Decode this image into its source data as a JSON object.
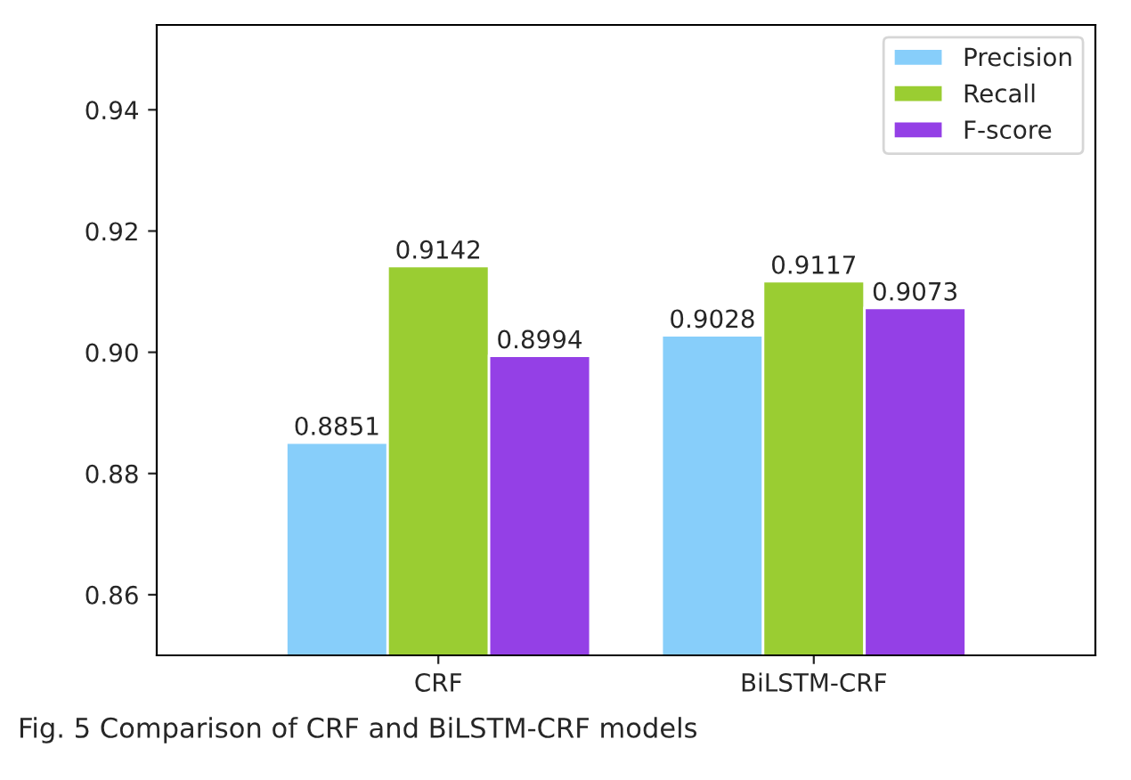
{
  "chart_data": {
    "type": "bar",
    "categories": [
      "CRF",
      "BiLSTM-CRF"
    ],
    "series": [
      {
        "name": "Precision",
        "color": "#87cefa",
        "values": [
          0.8851,
          0.9028
        ]
      },
      {
        "name": "Recall",
        "color": "#9acd32",
        "values": [
          0.9142,
          0.9117
        ]
      },
      {
        "name": "F-score",
        "color": "#9440e6",
        "values": [
          0.8994,
          0.9073
        ]
      }
    ],
    "ylim": [
      0.85,
      0.954
    ],
    "yticks": [
      {
        "value": 0.86,
        "label": "0.86"
      },
      {
        "value": 0.88,
        "label": "0.88"
      },
      {
        "value": 0.9,
        "label": "0.90"
      },
      {
        "value": 0.92,
        "label": "0.92"
      },
      {
        "value": 0.94,
        "label": "0.94"
      }
    ],
    "data_labels": true,
    "legend": "top right",
    "grid": false,
    "annotations": [
      "Fig. 5 Comparison of CRF and BiLSTM-CRF models"
    ]
  }
}
